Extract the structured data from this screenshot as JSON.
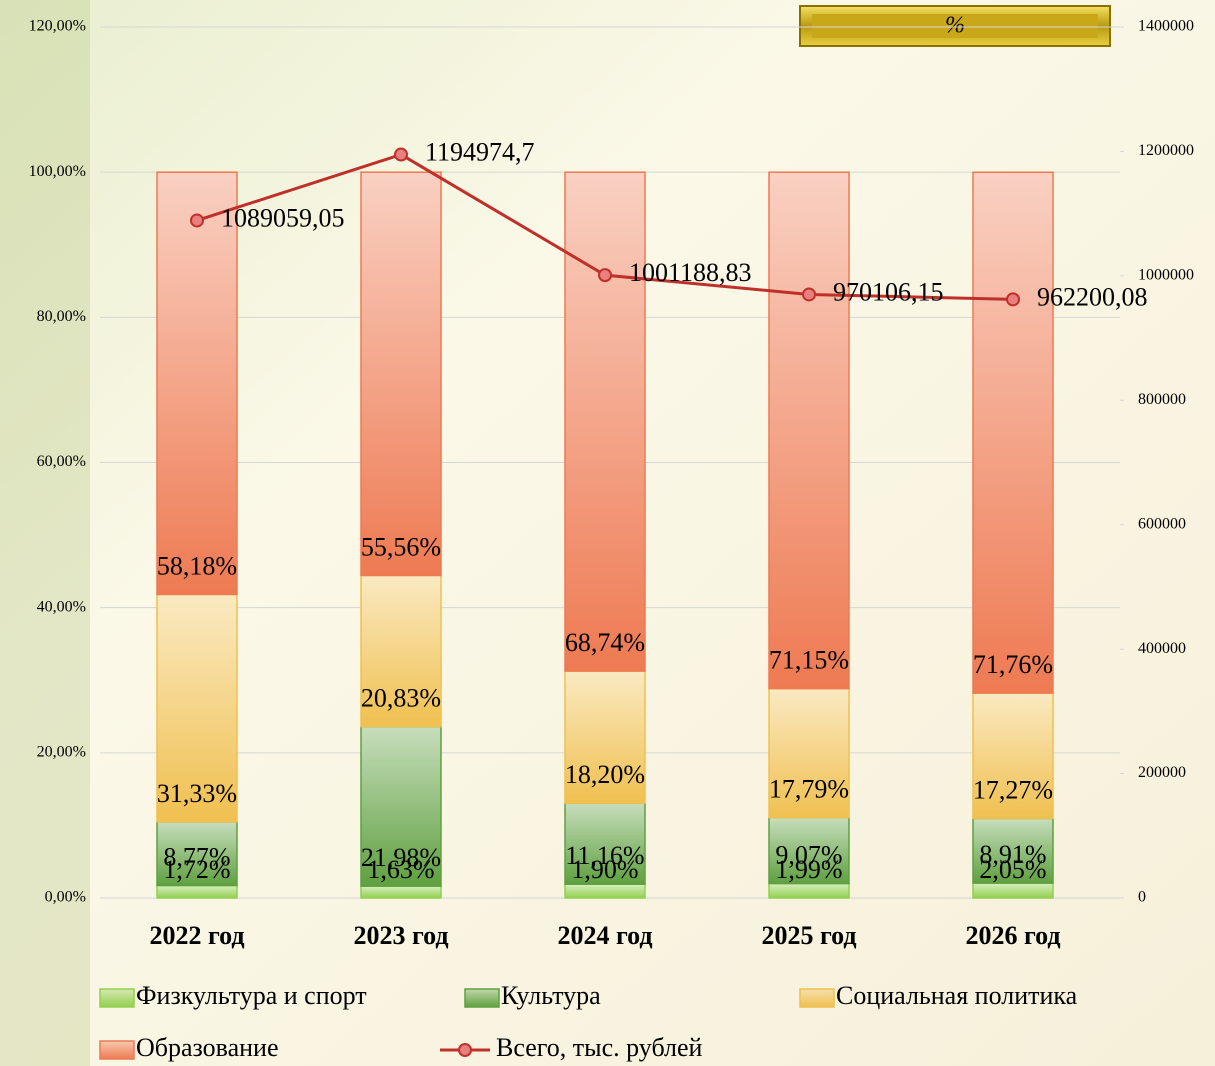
{
  "chart_data": {
    "type": "bar",
    "stacked": true,
    "title": "%",
    "categories": [
      "2022 год",
      "2023 год",
      "2024 год",
      "2025 год",
      "2026 год"
    ],
    "series": [
      {
        "name": "Физкультура и спорт",
        "color": "#92d050",
        "values": [
          1.72,
          1.63,
          1.9,
          1.99,
          2.05
        ],
        "value_labels": [
          "1,72%",
          "1,63%",
          "1,90%",
          "1,99%",
          "2,05%"
        ]
      },
      {
        "name": "Культура",
        "color": "#5fa040",
        "values": [
          8.77,
          21.98,
          11.16,
          9.07,
          8.91
        ],
        "value_labels": [
          "8,77%",
          "21,98%",
          "11,16%",
          "9,07%",
          "8,91%"
        ]
      },
      {
        "name": "Социальная политика",
        "color": "#f0c050",
        "values": [
          31.33,
          20.83,
          18.2,
          17.79,
          17.27
        ],
        "value_labels": [
          "31,33%",
          "20,83%",
          "18,20%",
          "17,79%",
          "17,27%"
        ]
      },
      {
        "name": "Образование",
        "color": "#ee7a52",
        "values": [
          58.18,
          55.56,
          68.74,
          71.15,
          71.76
        ],
        "value_labels": [
          "58,18%",
          "55,56%",
          "68,74%",
          "71,15%",
          "71,76%"
        ]
      },
      {
        "name": "Всего, тыс. рублей",
        "type": "line",
        "axis": "y2",
        "color": "#c0302a",
        "values": [
          1089059.05,
          1194974.7,
          1001188.83,
          970106.15,
          962200.08
        ],
        "value_labels": [
          "1089059,05",
          "1194974,7",
          "1001188,83",
          "970106,15",
          "962200,08"
        ]
      }
    ],
    "ylim": [
      0,
      120
    ],
    "yticks": [
      {
        "value": 0,
        "label": "0,00%"
      },
      {
        "value": 20,
        "label": "20,00%"
      },
      {
        "value": 40,
        "label": "40,00%"
      },
      {
        "value": 60,
        "label": "60,00%"
      },
      {
        "value": 80,
        "label": "80,00%"
      },
      {
        "value": 100,
        "label": "100,00%"
      },
      {
        "value": 120,
        "label": "120,00%"
      }
    ],
    "y2lim": [
      0,
      1400000
    ],
    "y2ticks": [
      0,
      200000,
      400000,
      600000,
      800000,
      1000000,
      1200000,
      1400000
    ],
    "grid": true
  }
}
